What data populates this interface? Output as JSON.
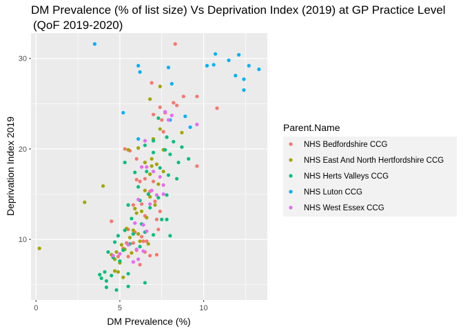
{
  "chart_data": {
    "type": "scatter",
    "title": "DM Prevalence (% of list size) Vs Deprivation Index (2019) at GP Practice Level",
    "subtitle": "(QoF 2019-2020)",
    "xlabel": "DM Prevalence (%)",
    "ylabel": "Deprivation Index 2019",
    "xlim": [
      -0.3,
      13.8
    ],
    "ylim": [
      3.3,
      32.8
    ],
    "xticks": [
      0,
      5,
      10
    ],
    "yticks": [
      10,
      20,
      30
    ],
    "grid": true,
    "legend": {
      "title": "Parent.Name",
      "placement": "right"
    },
    "series": [
      {
        "name": "NHS Bedfordshire CCG",
        "color": "#F8766D",
        "points": [
          [
            8.3,
            31.6
          ],
          [
            8.8,
            25.8
          ],
          [
            6.9,
            27.3
          ],
          [
            7.4,
            24.6
          ],
          [
            7.7,
            24.0
          ],
          [
            8.2,
            25.1
          ],
          [
            8.4,
            24.8
          ],
          [
            7.0,
            23.8
          ],
          [
            7.5,
            23.2
          ],
          [
            9.6,
            18.1
          ],
          [
            10.8,
            24.5
          ],
          [
            5.3,
            20.0
          ],
          [
            5.6,
            19.8
          ],
          [
            6.0,
            18.9
          ],
          [
            6.5,
            18.5
          ],
          [
            7.0,
            16.4
          ],
          [
            6.2,
            16.4
          ],
          [
            6.5,
            16.7
          ],
          [
            6.8,
            15.3
          ],
          [
            7.1,
            14.2
          ],
          [
            7.4,
            13.1
          ],
          [
            4.5,
            12.0
          ],
          [
            5.5,
            11.1
          ],
          [
            5.9,
            10.8
          ],
          [
            6.3,
            10.3
          ],
          [
            6.6,
            9.8
          ],
          [
            5.8,
            9.6
          ],
          [
            5.4,
            9.6
          ],
          [
            5.2,
            9.0
          ],
          [
            6.0,
            8.8
          ],
          [
            6.5,
            8.6
          ],
          [
            6.8,
            8.2
          ],
          [
            7.2,
            8.3
          ],
          [
            5.5,
            8.1
          ],
          [
            4.9,
            8.1
          ],
          [
            6.2,
            7.2
          ],
          [
            6.4,
            9.8
          ],
          [
            6.3,
            13.9
          ],
          [
            6.5,
            12.6
          ],
          [
            7.2,
            12.2
          ],
          [
            5.8,
            13.8
          ],
          [
            6.0,
            16.6
          ],
          [
            7.6,
            21.9
          ],
          [
            7.3,
            11.1
          ],
          [
            9.6,
            25.8
          ]
        ]
      },
      {
        "name": "NHS East And North Hertfordshire CCG",
        "color": "#A3A500",
        "points": [
          [
            0.2,
            9.0
          ],
          [
            2.9,
            14.1
          ],
          [
            4.0,
            15.9
          ],
          [
            7.4,
            26.9
          ],
          [
            6.8,
            25.5
          ],
          [
            5.5,
            19.9
          ],
          [
            6.1,
            20.1
          ],
          [
            7.0,
            21.1
          ],
          [
            7.4,
            22.2
          ],
          [
            6.5,
            18.5
          ],
          [
            6.9,
            18.9
          ],
          [
            7.2,
            18.3
          ],
          [
            6.8,
            17.2
          ],
          [
            7.3,
            16.1
          ],
          [
            6.5,
            15.4
          ],
          [
            6.8,
            14.7
          ],
          [
            7.1,
            13.8
          ],
          [
            6.3,
            13.1
          ],
          [
            5.9,
            13.4
          ],
          [
            6.0,
            12.9
          ],
          [
            6.6,
            12.4
          ],
          [
            5.4,
            11.2
          ],
          [
            5.8,
            11.0
          ],
          [
            6.1,
            10.6
          ],
          [
            5.6,
            10.2
          ],
          [
            6.2,
            9.8
          ],
          [
            6.7,
            9.5
          ],
          [
            5.1,
            9.4
          ],
          [
            5.3,
            8.9
          ],
          [
            5.7,
            8.5
          ],
          [
            4.8,
            8.6
          ],
          [
            4.5,
            8.3
          ],
          [
            4.7,
            7.8
          ],
          [
            5.0,
            7.4
          ],
          [
            4.7,
            6.5
          ],
          [
            4.9,
            6.4
          ],
          [
            5.2,
            5.8
          ],
          [
            7.6,
            17.5
          ],
          [
            7.6,
            19.9
          ],
          [
            8.7,
            21.8
          ],
          [
            6.9,
            18.1
          ]
        ]
      },
      {
        "name": "NHS Herts Valleys CCG",
        "color": "#00BF7D",
        "points": [
          [
            7.3,
            23.4
          ],
          [
            7.8,
            21.3
          ],
          [
            8.2,
            20.8
          ],
          [
            8.7,
            20.2
          ],
          [
            6.5,
            20.4
          ],
          [
            7.0,
            20.9
          ],
          [
            7.7,
            19.9
          ],
          [
            8.0,
            19.4
          ],
          [
            8.5,
            18.5
          ],
          [
            5.3,
            18.5
          ],
          [
            5.9,
            17.4
          ],
          [
            6.6,
            17.5
          ],
          [
            7.4,
            17.9
          ],
          [
            7.9,
            17.1
          ],
          [
            8.4,
            16.7
          ],
          [
            6.1,
            15.8
          ],
          [
            6.7,
            15.0
          ],
          [
            7.3,
            14.6
          ],
          [
            7.8,
            14.9
          ],
          [
            5.5,
            13.8
          ],
          [
            6.2,
            14.3
          ],
          [
            6.8,
            13.5
          ],
          [
            7.5,
            12.2
          ],
          [
            7.8,
            12.2
          ],
          [
            5.7,
            12.3
          ],
          [
            6.3,
            11.7
          ],
          [
            5.3,
            11.0
          ],
          [
            5.8,
            10.6
          ],
          [
            6.5,
            10.8
          ],
          [
            7.0,
            10.5
          ],
          [
            8.0,
            10.4
          ],
          [
            4.9,
            10.4
          ],
          [
            5.6,
            9.5
          ],
          [
            6.2,
            9.2
          ],
          [
            4.7,
            9.7
          ],
          [
            5.2,
            8.8
          ],
          [
            4.3,
            8.6
          ],
          [
            4.6,
            8.0
          ],
          [
            5.0,
            7.6
          ],
          [
            4.1,
            6.4
          ],
          [
            4.5,
            6.0
          ],
          [
            3.9,
            5.7
          ],
          [
            4.2,
            5.4
          ],
          [
            5.5,
            6.2
          ],
          [
            6.5,
            5.2
          ],
          [
            4.2,
            4.7
          ],
          [
            5.5,
            4.8
          ],
          [
            4.8,
            4.4
          ],
          [
            3.8,
            6.1
          ],
          [
            9.1,
            18.9
          ],
          [
            7.0,
            19.6
          ]
        ]
      },
      {
        "name": "NHS Luton CCG",
        "color": "#00B0F6",
        "points": [
          [
            3.5,
            31.6
          ],
          [
            6.1,
            29.2
          ],
          [
            6.2,
            28.5
          ],
          [
            7.9,
            29.0
          ],
          [
            8.1,
            27.2
          ],
          [
            10.2,
            29.2
          ],
          [
            10.6,
            29.3
          ],
          [
            10.7,
            30.5
          ],
          [
            11.5,
            29.8
          ],
          [
            11.9,
            28.1
          ],
          [
            12.1,
            30.4
          ],
          [
            12.7,
            29.2
          ],
          [
            12.4,
            27.7
          ],
          [
            12.4,
            26.5
          ],
          [
            13.3,
            28.8
          ],
          [
            8.0,
            23.2
          ],
          [
            5.2,
            24.0
          ],
          [
            8.9,
            23.6
          ],
          [
            6.1,
            21.1
          ],
          [
            9.2,
            22.4
          ]
        ]
      },
      {
        "name": "NHS West Essex CCG",
        "color": "#E76BF3",
        "points": [
          [
            7.7,
            24.1
          ],
          [
            8.1,
            23.7
          ],
          [
            7.9,
            23.2
          ],
          [
            6.5,
            20.9
          ],
          [
            6.3,
            18.0
          ],
          [
            6.6,
            18.0
          ],
          [
            7.0,
            17.5
          ],
          [
            7.4,
            16.9
          ],
          [
            7.6,
            16.0
          ],
          [
            6.9,
            15.4
          ],
          [
            7.2,
            14.9
          ],
          [
            7.6,
            15.0
          ],
          [
            6.1,
            14.4
          ],
          [
            6.8,
            13.9
          ],
          [
            6.4,
            11.6
          ],
          [
            5.9,
            11.8
          ],
          [
            6.6,
            10.9
          ],
          [
            5.5,
            9.4
          ],
          [
            6.0,
            8.9
          ],
          [
            6.4,
            8.7
          ],
          [
            6.1,
            7.8
          ],
          [
            5.8,
            7.5
          ],
          [
            4.6,
            8.2
          ],
          [
            5.0,
            8.4
          ],
          [
            9.6,
            22.7
          ]
        ]
      }
    ]
  }
}
